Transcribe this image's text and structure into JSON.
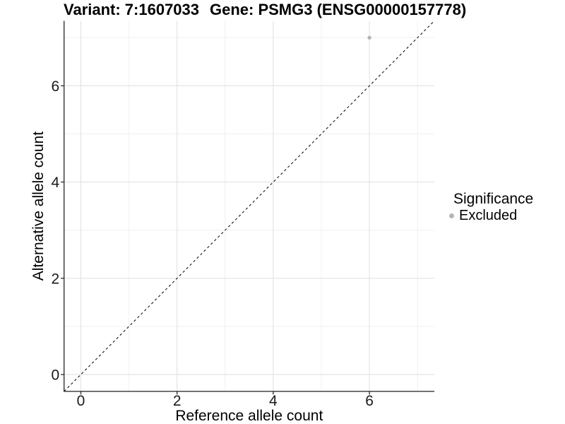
{
  "chart_data": {
    "type": "scatter",
    "title_left": "Variant: 7:1607033",
    "title_right": "Gene: PSMG3 (ENSG00000157778)",
    "xlabel": "Reference allele count",
    "ylabel": "Alternative allele count",
    "xlim": [
      -0.35,
      7.35
    ],
    "ylim": [
      -0.35,
      7.35
    ],
    "x_ticks": [
      0,
      2,
      4,
      6
    ],
    "y_ticks": [
      0,
      2,
      4,
      6
    ],
    "x_minor_ticks": [
      1,
      3,
      5,
      7
    ],
    "y_minor_ticks": [
      1,
      3,
      5,
      7
    ],
    "grid": true,
    "series": [
      {
        "name": "Excluded",
        "color": "#b5b5b5",
        "points": [
          {
            "x": 6,
            "y": 7
          }
        ]
      }
    ],
    "reference_line": {
      "type": "identity",
      "style": "dashed",
      "color": "#000000",
      "from": -0.35,
      "to": 7.35
    },
    "legend": {
      "title": "Significance",
      "position": "right",
      "items": [
        {
          "label": "Excluded",
          "color": "#b5b5b5"
        }
      ]
    },
    "style": {
      "background": "#ffffff",
      "grid_major_color": "#e4e4e4",
      "grid_minor_color": "#f0f0f0",
      "axis_color": "#333333",
      "tick_label_color": "#1a1a1a",
      "title_color": "#000000"
    }
  }
}
